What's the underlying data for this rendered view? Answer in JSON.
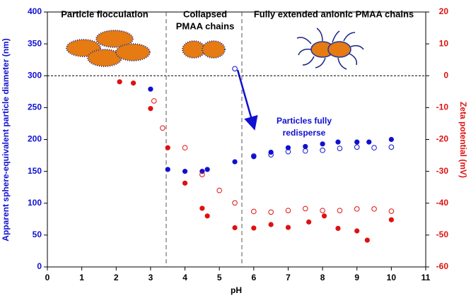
{
  "chart_data": {
    "type": "scatter",
    "xlabel": "pH",
    "ylabel": "Apparent sphere-equivalent particle diameter (nm)",
    "y2label": "Zeta potential (mV)",
    "xlim": [
      0,
      11
    ],
    "xticks": [
      0,
      1,
      2,
      3,
      4,
      5,
      6,
      7,
      8,
      9,
      10,
      11
    ],
    "ylim": [
      0,
      400
    ],
    "yticks": [
      0,
      50,
      100,
      150,
      200,
      250,
      300,
      350,
      400
    ],
    "y2lim": [
      -60,
      20
    ],
    "y2ticks": [
      -60,
      -50,
      -40,
      -30,
      -20,
      -10,
      0,
      10,
      20
    ],
    "annotations": [
      "Particle flocculation",
      "Collapsed",
      "PMAA chains",
      "Fully extended anionic PMAA chains",
      "Particles fully",
      "redisperse"
    ],
    "series": [
      {
        "color": "#1010d0",
        "marker": "filled",
        "x": [
          3.0,
          3.5,
          4.0,
          4.5,
          4.65,
          5.45,
          6.0,
          6.5,
          7.0,
          7.5,
          8.0,
          8.45,
          9.0,
          9.35,
          10.0
        ],
        "values": [
          279,
          153,
          150,
          150,
          153,
          165,
          173,
          180,
          187,
          189,
          193,
          196,
          196,
          196,
          200
        ]
      },
      {
        "color": "#1010d0",
        "marker": "open",
        "x": [
          5.45,
          6.0,
          6.5,
          7.0,
          7.5,
          8.0,
          8.5,
          9.0,
          9.5,
          10.0
        ],
        "values": [
          311,
          174,
          176,
          181,
          182,
          183,
          186,
          188,
          187,
          188
        ]
      },
      {
        "color": "#e01010",
        "marker": "filled",
        "axis": "y2",
        "x": [
          2.1,
          2.5,
          3.0,
          3.5,
          4.0,
          4.5,
          4.65,
          5.45,
          6.0,
          6.5,
          7.0,
          7.6,
          8.05,
          8.45,
          9.0,
          9.3,
          10.0
        ],
        "values": [
          -1.9,
          -2.3,
          -10.3,
          -22.6,
          -33.7,
          -41.6,
          -44,
          -47.7,
          -47.8,
          -46.7,
          -47.6,
          -45.9,
          -44,
          -47.9,
          -48.7,
          -51.6,
          -45.2
        ]
      },
      {
        "color": "#e01010",
        "marker": "open",
        "axis": "y2",
        "x": [
          3.1,
          3.35,
          4.0,
          4.5,
          5.0,
          5.45,
          6.0,
          6.5,
          7.0,
          7.5,
          8.0,
          8.5,
          9.0,
          9.5,
          10.0
        ],
        "values": [
          -7.9,
          -16.4,
          -22.6,
          -31,
          -36,
          -39.9,
          -42.6,
          -42.8,
          -42.3,
          -41.7,
          -42.3,
          -42.3,
          -41.8,
          -41.8,
          -42.5
        ]
      }
    ]
  }
}
